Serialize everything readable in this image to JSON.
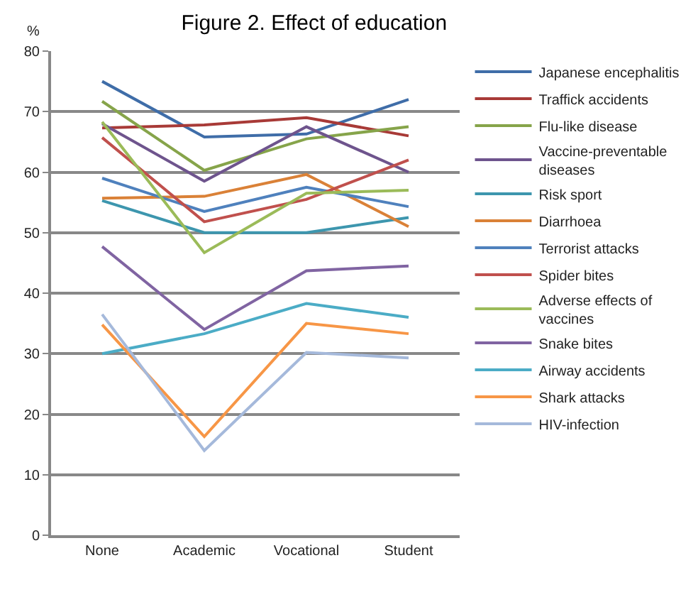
{
  "chart_data": {
    "type": "line",
    "title": "Figure 2. Effect of education",
    "ylabel": "%",
    "categories": [
      "None",
      "Academic",
      "Vocational",
      "Student"
    ],
    "ylim": [
      0,
      80
    ],
    "yticks": [
      0,
      10,
      20,
      30,
      40,
      50,
      60,
      70,
      80
    ],
    "grid": "y",
    "legend": "right",
    "marker": "none",
    "line_style": "solid",
    "series": [
      {
        "name": "Japanese encephalitis",
        "color": "#3f6da8",
        "values": [
          75,
          65.8,
          66.3,
          72
        ]
      },
      {
        "name": "Traffick accidents",
        "color": "#a83a37",
        "values": [
          67.3,
          67.8,
          69,
          66
        ]
      },
      {
        "name": "Flu-like disease",
        "color": "#86a44a",
        "values": [
          71.7,
          60.3,
          65.5,
          67.5
        ]
      },
      {
        "name": "Vaccine-preventable diseases",
        "color": "#6e548d",
        "values": [
          68,
          58.5,
          67.5,
          60
        ]
      },
      {
        "name": "Risk sport",
        "color": "#3d96ae",
        "values": [
          55.3,
          50,
          50,
          52.5
        ]
      },
      {
        "name": "Diarrhoea",
        "color": "#da8137",
        "values": [
          55.7,
          56,
          59.6,
          51
        ]
      },
      {
        "name": "Terrorist attacks",
        "color": "#4f81bd",
        "values": [
          59,
          53.5,
          57.5,
          54.3
        ]
      },
      {
        "name": "Spider bites",
        "color": "#c0504d",
        "values": [
          65.7,
          51.8,
          55.5,
          62
        ]
      },
      {
        "name": "Adverse effects of vaccines",
        "color": "#9bbb59",
        "values": [
          68.3,
          46.7,
          56.5,
          57
        ]
      },
      {
        "name": "Snake bites",
        "color": "#8064a2",
        "values": [
          47.7,
          34,
          43.7,
          44.5
        ]
      },
      {
        "name": "Airway accidents",
        "color": "#4bacc6",
        "values": [
          30,
          33.3,
          38.3,
          36
        ]
      },
      {
        "name": "Shark attacks",
        "color": "#f79646",
        "values": [
          34.8,
          16.3,
          35,
          33.3
        ]
      },
      {
        "name": "HIV-infection",
        "color": "#a5b9db",
        "values": [
          36.5,
          14,
          30.2,
          29.3
        ]
      }
    ]
  }
}
